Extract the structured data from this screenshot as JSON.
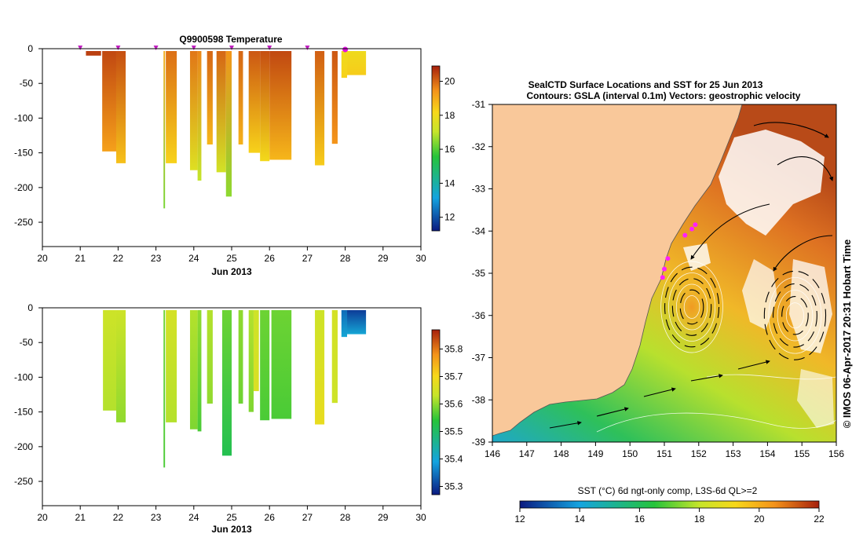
{
  "chart_data": [
    {
      "id": "temperature",
      "type": "heatmap",
      "title": "Q9900598  Temperature",
      "xlabel": "Jun 2013",
      "ylabel": "",
      "xlim": [
        20,
        30
      ],
      "ylim": [
        -285,
        0
      ],
      "xticks": [
        "20",
        "21",
        "22",
        "23",
        "24",
        "25",
        "26",
        "27",
        "28",
        "29",
        "30"
      ],
      "yticks": [
        "0",
        "-50",
        "-100",
        "-150",
        "-200",
        "-250"
      ],
      "colorbar": {
        "range": [
          11.2,
          20.9
        ],
        "ticks": [
          "12",
          "14",
          "16",
          "18",
          "20"
        ]
      },
      "profile_markers_day": [
        21.0,
        22.0,
        23.0,
        24.0,
        25.0,
        26.0,
        27.0,
        28.0
      ],
      "profiles": [
        {
          "x0": 21.15,
          "x1": 21.55,
          "bottom": -10,
          "top_value": 20.5,
          "bottom_value": 20.5
        },
        {
          "x0": 21.58,
          "x1": 21.95,
          "bottom": -148,
          "top_value": 20.4,
          "bottom_value": 19.2
        },
        {
          "x0": 21.95,
          "x1": 22.2,
          "bottom": -165,
          "top_value": 20.3,
          "bottom_value": 18.6
        },
        {
          "x0": 23.2,
          "x1": 23.24,
          "bottom": -230,
          "top_value": 19.0,
          "bottom_value": 16.3
        },
        {
          "x0": 23.26,
          "x1": 23.55,
          "bottom": -165,
          "top_value": 19.9,
          "bottom_value": 18.3
        },
        {
          "x0": 23.9,
          "x1": 24.1,
          "bottom": -175,
          "top_value": 19.8,
          "bottom_value": 17.6
        },
        {
          "x0": 24.1,
          "x1": 24.2,
          "bottom": -190,
          "top_value": 19.6,
          "bottom_value": 17.0
        },
        {
          "x0": 24.35,
          "x1": 24.5,
          "bottom": -138,
          "top_value": 20.0,
          "bottom_value": 18.8
        },
        {
          "x0": 24.6,
          "x1": 24.85,
          "bottom": -178,
          "top_value": 20.0,
          "bottom_value": 17.3
        },
        {
          "x0": 24.85,
          "x1": 25.0,
          "bottom": -213,
          "top_value": 19.4,
          "bottom_value": 16.5
        },
        {
          "x0": 25.18,
          "x1": 25.3,
          "bottom": -138,
          "top_value": 20.0,
          "bottom_value": 18.9
        },
        {
          "x0": 25.45,
          "x1": 25.75,
          "bottom": -150,
          "top_value": 20.2,
          "bottom_value": 18.3
        },
        {
          "x0": 25.75,
          "x1": 26.0,
          "bottom": -162,
          "top_value": 20.3,
          "bottom_value": 18.1
        },
        {
          "x0": 26.0,
          "x1": 26.58,
          "bottom": -160,
          "top_value": 20.4,
          "bottom_value": 18.8
        },
        {
          "x0": 27.2,
          "x1": 27.45,
          "bottom": -168,
          "top_value": 20.1,
          "bottom_value": 18.4
        },
        {
          "x0": 27.65,
          "x1": 27.8,
          "bottom": -137,
          "top_value": 20.2,
          "bottom_value": 19.4
        },
        {
          "x0": 27.9,
          "x1": 28.05,
          "bottom": -42,
          "top_value": 18.0,
          "bottom_value": 18.3
        },
        {
          "x0": 28.05,
          "x1": 28.55,
          "bottom": -38,
          "top_value": 18.0,
          "bottom_value": 18.4
        }
      ]
    },
    {
      "id": "salinity",
      "type": "heatmap",
      "title": "",
      "xlabel": "Jun 2013",
      "ylabel": "",
      "xlim": [
        20,
        30
      ],
      "ylim": [
        -285,
        0
      ],
      "xticks": [
        "20",
        "21",
        "22",
        "23",
        "24",
        "25",
        "26",
        "27",
        "28",
        "29",
        "30"
      ],
      "yticks": [
        "0",
        "-50",
        "-100",
        "-150",
        "-200",
        "-250"
      ],
      "colorbar": {
        "range": [
          35.27,
          35.87
        ],
        "ticks": [
          "35.3",
          "35.4",
          "35.5",
          "35.6",
          "35.7",
          "35.8"
        ]
      },
      "profiles": [
        {
          "x0": 21.6,
          "x1": 21.95,
          "bottom": -148,
          "top_value": 35.64,
          "bottom_value": 35.62
        },
        {
          "x0": 21.95,
          "x1": 22.2,
          "bottom": -165,
          "top_value": 35.64,
          "bottom_value": 35.6
        },
        {
          "x0": 23.2,
          "x1": 23.24,
          "bottom": -230,
          "top_value": 35.58,
          "bottom_value": 35.56
        },
        {
          "x0": 23.26,
          "x1": 23.55,
          "bottom": -165,
          "top_value": 35.65,
          "bottom_value": 35.62
        },
        {
          "x0": 23.9,
          "x1": 24.1,
          "bottom": -175,
          "top_value": 35.62,
          "bottom_value": 35.59
        },
        {
          "x0": 24.1,
          "x1": 24.2,
          "bottom": -178,
          "top_value": 35.6,
          "bottom_value": 35.56
        },
        {
          "x0": 24.35,
          "x1": 24.5,
          "bottom": -138,
          "top_value": 35.62,
          "bottom_value": 35.6
        },
        {
          "x0": 24.75,
          "x1": 25.0,
          "bottom": -213,
          "top_value": 35.58,
          "bottom_value": 35.52
        },
        {
          "x0": 25.18,
          "x1": 25.3,
          "bottom": -138,
          "top_value": 35.6,
          "bottom_value": 35.58
        },
        {
          "x0": 25.45,
          "x1": 25.58,
          "bottom": -150,
          "top_value": 35.62,
          "bottom_value": 35.59
        },
        {
          "x0": 25.58,
          "x1": 25.72,
          "bottom": -120,
          "top_value": 35.64,
          "bottom_value": 35.66
        },
        {
          "x0": 25.75,
          "x1": 26.0,
          "bottom": -162,
          "top_value": 35.58,
          "bottom_value": 35.56
        },
        {
          "x0": 26.05,
          "x1": 26.58,
          "bottom": -160,
          "top_value": 35.58,
          "bottom_value": 35.56
        },
        {
          "x0": 27.2,
          "x1": 27.45,
          "bottom": -168,
          "top_value": 35.64,
          "bottom_value": 35.68
        },
        {
          "x0": 27.65,
          "x1": 27.8,
          "bottom": -137,
          "top_value": 35.65,
          "bottom_value": 35.64
        },
        {
          "x0": 27.9,
          "x1": 28.05,
          "bottom": -42,
          "top_value": 35.34,
          "bottom_value": 35.4
        },
        {
          "x0": 28.05,
          "x1": 28.55,
          "bottom": -38,
          "top_value": 35.3,
          "bottom_value": 35.4
        }
      ]
    },
    {
      "id": "sst-map",
      "type": "map",
      "title_line1": "SealCTD Surface Locations and SST for 25 Jun 2013",
      "title_line2": "Contours: GSLA (interval 0.1m) Vectors: geostrophic velocity",
      "lon_range": [
        146,
        156
      ],
      "lat_range": [
        -39,
        -31
      ],
      "xticks": [
        "146",
        "147",
        "148",
        "149",
        "150",
        "151",
        "152",
        "153",
        "154",
        "155",
        "156"
      ],
      "yticks": [
        "-31",
        "-32",
        "-33",
        "-34",
        "-35",
        "-36",
        "-37",
        "-38",
        "-39"
      ],
      "colorbar": {
        "label": "SST (°C) 6d ngt-only comp, L3S-6d QL>=2",
        "range": [
          12,
          22
        ],
        "ticks": [
          "12",
          "14",
          "16",
          "18",
          "20",
          "22"
        ]
      },
      "seal_locations": [
        [
          151.9,
          -33.85
        ],
        [
          151.8,
          -33.95
        ],
        [
          151.6,
          -34.1
        ],
        [
          151.1,
          -34.65
        ],
        [
          151.0,
          -34.9
        ],
        [
          150.95,
          -35.1
        ]
      ],
      "eddies": [
        [
          151.8,
          -35.8,
          0.75,
          0.9
        ],
        [
          154.8,
          -36.0,
          0.85,
          1.0
        ]
      ],
      "credit": "© IMOS 06-Apr-2017 20:31 Hobart Time"
    }
  ]
}
